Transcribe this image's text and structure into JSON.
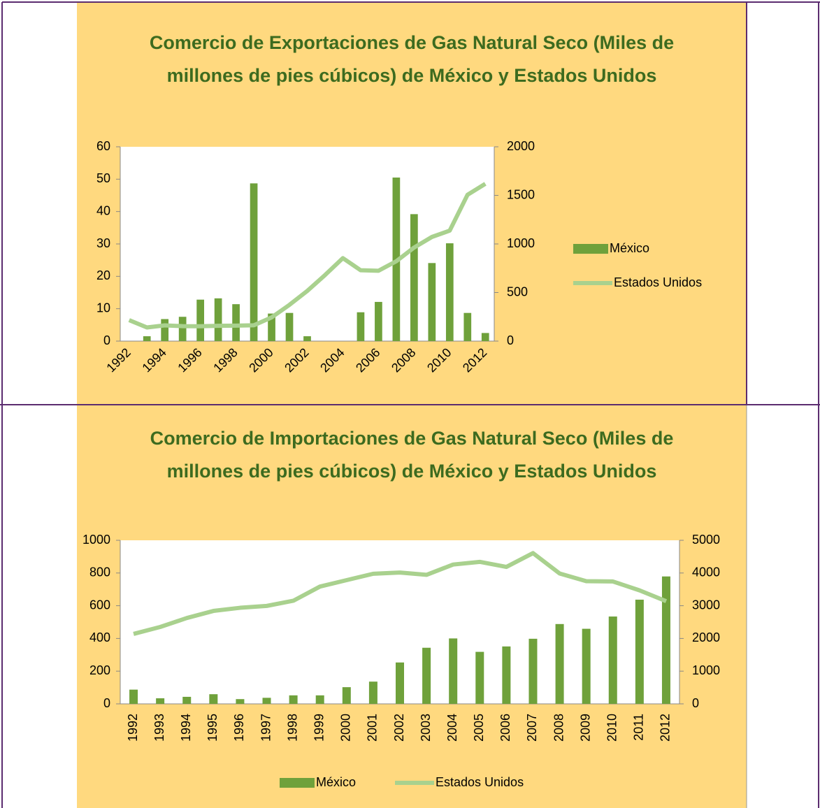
{
  "chart_data": [
    {
      "type": "combo",
      "title": "Comercio de Exportaciones de Gas Natural Seco (Miles de millones de pies cúbicos) de México y Estados Unidos",
      "categories": [
        "1992",
        null,
        "1994",
        null,
        "1996",
        null,
        "1998",
        null,
        "2000",
        null,
        "2002",
        null,
        "2004",
        null,
        "2006",
        null,
        "2008",
        null,
        "2010",
        null,
        "2012"
      ],
      "series": [
        {
          "name": "México",
          "type": "bar",
          "color": "#6fa13b",
          "values": [
            0,
            1.5,
            6.8,
            7.5,
            12.8,
            13.2,
            11.4,
            48.7,
            8.5,
            8.7,
            1.5,
            0,
            0,
            8.9,
            12.1,
            50.5,
            39.2,
            24.1,
            30.2,
            8.7,
            2.5
          ]
        },
        {
          "name": "Estados Unidos",
          "type": "line",
          "axis": "y2",
          "color": "#a9d18e",
          "values": [
            216,
            140,
            162,
            154,
            153,
            157,
            159,
            163,
            244,
            373,
            516,
            680,
            854,
            729,
            724,
            822,
            963,
            1072,
            1137,
            1506,
            1619
          ]
        }
      ],
      "ylim": [
        0,
        60
      ],
      "yticks": [
        0,
        10,
        20,
        30,
        40,
        50,
        60
      ],
      "y2lim": [
        0,
        2000
      ],
      "y2ticks": [
        0,
        500,
        1000,
        1500,
        2000
      ],
      "legend": "right"
    },
    {
      "type": "combo",
      "title": "Comercio de Importaciones de Gas Natural Seco (Miles de millones de pies cúbicos) de México y Estados Unidos",
      "categories": [
        "1992",
        "1993",
        "1994",
        "1995",
        "1996",
        "1997",
        "1998",
        "1999",
        "2000",
        "2001",
        "2002",
        "2003",
        "2004",
        "2005",
        "2006",
        "2007",
        "2008",
        "2009",
        "2010",
        "2011",
        "2012"
      ],
      "series": [
        {
          "name": "México",
          "type": "bar",
          "color": "#6fa13b",
          "values": [
            87,
            34,
            43,
            59,
            29,
            37,
            52,
            52,
            102,
            136,
            253,
            343,
            400,
            318,
            351,
            398,
            488,
            459,
            534,
            637,
            779
          ]
        },
        {
          "name": "Estados Unidos",
          "type": "line",
          "axis": "y2",
          "color": "#a9d18e",
          "values": [
            2138,
            2350,
            2624,
            2841,
            2937,
            2994,
            3152,
            3586,
            3782,
            3977,
            4015,
            3944,
            4259,
            4341,
            4186,
            4608,
            3984,
            3751,
            3741,
            3469,
            3138
          ]
        }
      ],
      "ylim": [
        0,
        1000
      ],
      "yticks": [
        0,
        200,
        400,
        600,
        800,
        1000
      ],
      "y2lim": [
        0,
        5000
      ],
      "y2ticks": [
        0,
        1000,
        2000,
        3000,
        4000,
        5000
      ],
      "legend": "bottom"
    }
  ]
}
